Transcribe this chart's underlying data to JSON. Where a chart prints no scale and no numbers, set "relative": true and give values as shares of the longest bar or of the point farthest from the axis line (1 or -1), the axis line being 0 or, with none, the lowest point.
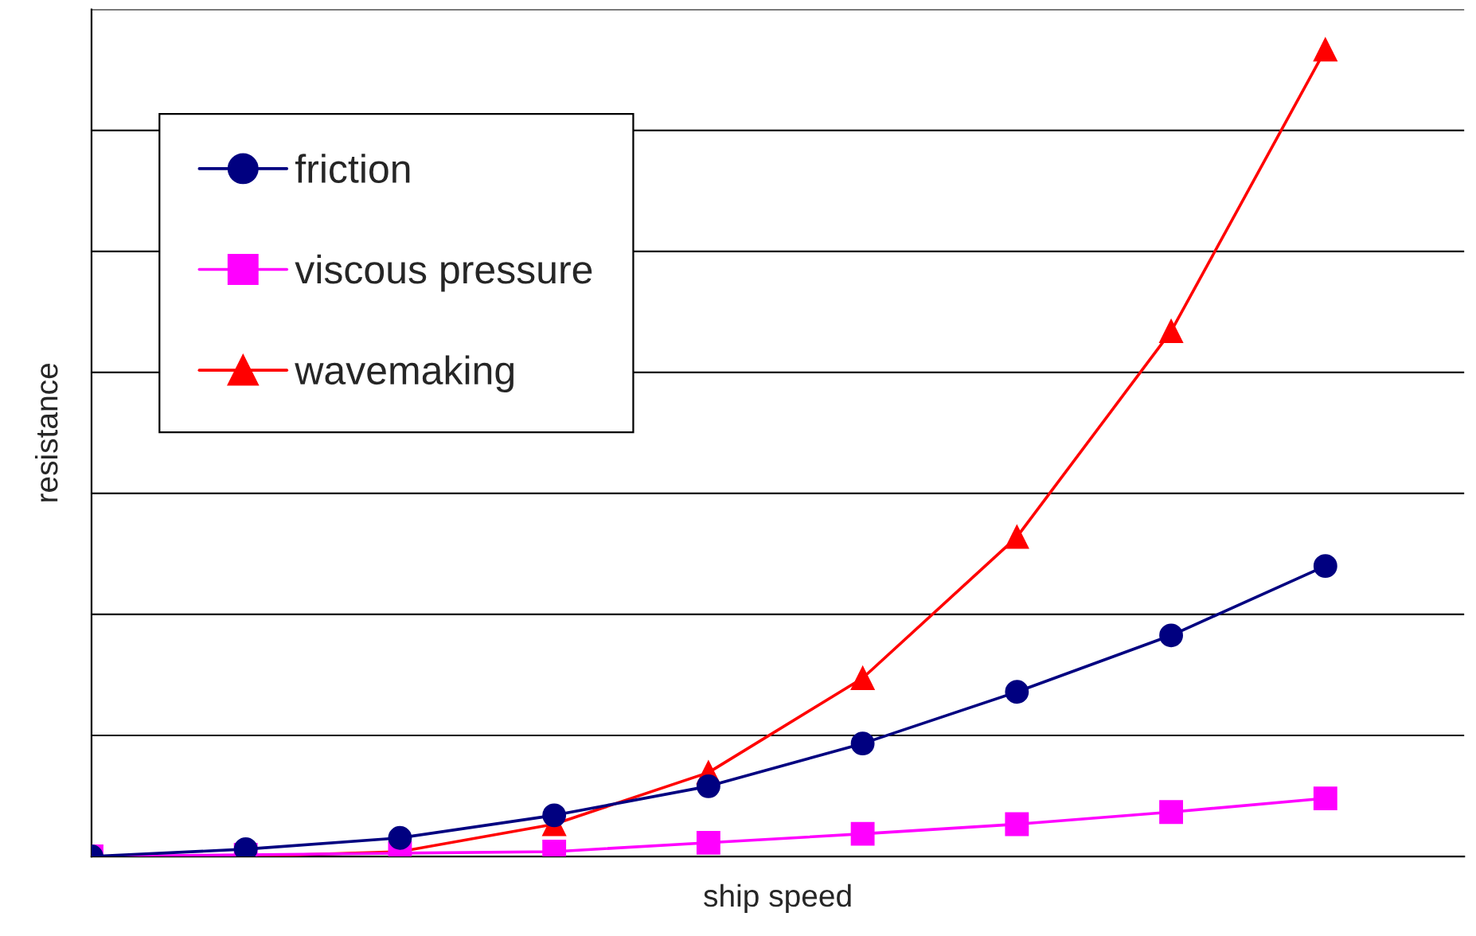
{
  "chart_data": {
    "type": "line",
    "relative": true,
    "xlabel": "ship speed",
    "ylabel": "resistance",
    "categories": [
      null,
      null,
      null,
      null,
      null,
      null,
      null,
      null,
      null
    ],
    "series": [
      {
        "name": "friction",
        "color": "#000080",
        "marker": "circle",
        "values": [
          0,
          0.009,
          0.023,
          0.051,
          0.087,
          0.14,
          0.204,
          0.274,
          0.36
        ]
      },
      {
        "name": "viscous pressure",
        "color": "#ff00ff",
        "marker": "square",
        "values": [
          0,
          0.002,
          0.004,
          0.006,
          0.017,
          0.028,
          0.04,
          0.055,
          0.072
        ]
      },
      {
        "name": "wavemaking",
        "color": "#ff0000",
        "marker": "triangle",
        "values": [
          0,
          0,
          0.006,
          0.04,
          0.104,
          0.221,
          0.396,
          0.651,
          1
        ]
      }
    ],
    "grid": "y",
    "legend": "top left",
    "line_style": "solid"
  }
}
